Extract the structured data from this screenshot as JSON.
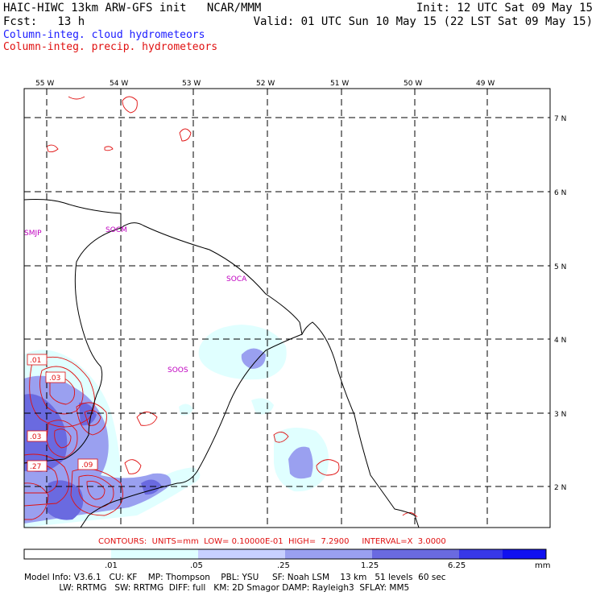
{
  "header": {
    "left_line1": "HAIC-HIWC 13km ARW-GFS init   NCAR/MMM",
    "left_line2": "Fcst:   13 h",
    "right_line1": "Init: 12 UTC Sat 09 May 15",
    "right_line2": "Valid: 01 UTC Sun 10 May 15 (22 LST Sat 09 May 15)",
    "legend_blue": "Column-integ. cloud hydrometeors",
    "legend_red": "Column-integ. precip. hydrometeors"
  },
  "colors": {
    "blue": "#1a1aff",
    "red": "#e01010",
    "magenta": "#c000c0"
  },
  "map": {
    "lon_labels": [
      "55 W",
      "54 W",
      "53 W",
      "52 W",
      "51 W",
      "50 W",
      "49 W"
    ],
    "lat_labels": [
      "7 N",
      "6 N",
      "5 N",
      "4 N",
      "3 N",
      "2 N"
    ],
    "stations": [
      "SMJP",
      "SOCM",
      "SOCA",
      "SOOS"
    ],
    "contour_labels": [
      ".01",
      ".03",
      ".03",
      ".27",
      ".09"
    ]
  },
  "contour_info": {
    "text": "CONTOURS:  UNITS=mm  LOW= 0.10000E-01  HIGH=  7.2900     INTERVAL=X  3.0000"
  },
  "colorbar": {
    "colors": [
      "#ffffff",
      "#e0ffff",
      "#c8d0ff",
      "#9aa0f0",
      "#6a6ae0",
      "#3838e8",
      "#1010f0"
    ],
    "tick_labels": [
      ".01",
      ".05",
      ".25",
      "1.25",
      "6.25"
    ],
    "unit": "mm"
  },
  "footer": {
    "line1": "Model Info: V3.6.1   CU: KF    MP: Thompson    PBL: YSU     SF: Noah LSM    13 km   51 levels  60 sec",
    "line2": "             LW: RRTMG   SW: RRTMG  DIFF: full   KM: 2D Smagor DAMP: Rayleigh3  SFLAY: MM5"
  }
}
